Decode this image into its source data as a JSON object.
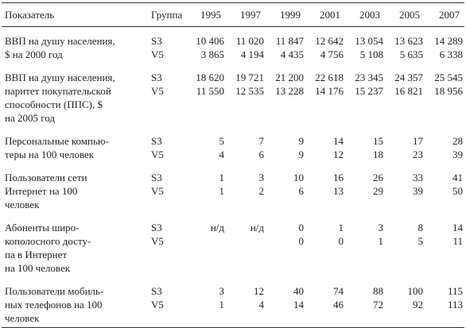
{
  "table": {
    "header": [
      "Показатель",
      "Группа",
      "1995",
      "1997",
      "1999",
      "2001",
      "2003",
      "2005",
      "2007"
    ],
    "rows": [
      {
        "label": [
          "ВВП на душу населения,",
          "$ на 2000 год"
        ],
        "groups": [
          {
            "name": "S3",
            "values": [
              "10 406",
              "11 020",
              "11 847",
              "12 642",
              "13 054",
              "13 623",
              "14 289"
            ]
          },
          {
            "name": "V5",
            "values": [
              "3 865",
              "4 194",
              "4 435",
              "4 756",
              "5 108",
              "5 635",
              "6 338"
            ]
          }
        ]
      },
      {
        "label": [
          "ВВП на душу населения,",
          "паритет покупательской",
          "способности (ППС), $",
          "на 2005 год"
        ],
        "groups": [
          {
            "name": "S3",
            "values": [
              "18 620",
              "19 721",
              "21 200",
              "22 618",
              "23 345",
              "24 357",
              "25 545"
            ]
          },
          {
            "name": "V5",
            "values": [
              "11 550",
              "12 535",
              "13 228",
              "14 176",
              "15 237",
              "16 821",
              "18 956"
            ]
          }
        ]
      },
      {
        "label": [
          "Персональные компью-",
          "теры на 100 человек"
        ],
        "groups": [
          {
            "name": "S3",
            "values": [
              "5",
              "7",
              "9",
              "14",
              "15",
              "17",
              "28"
            ]
          },
          {
            "name": "V5",
            "values": [
              "4",
              "6",
              "9",
              "12",
              "18",
              "23",
              "39"
            ]
          }
        ]
      },
      {
        "label": [
          "Пользователи сети",
          "Интернет на 100",
          "человек"
        ],
        "groups": [
          {
            "name": "S3",
            "values": [
              "1",
              "3",
              "10",
              "16",
              "26",
              "33",
              "41"
            ]
          },
          {
            "name": "V5",
            "values": [
              "1",
              "2",
              "6",
              "13",
              "29",
              "39",
              "50"
            ]
          }
        ]
      },
      {
        "label": [
          "Абоненты широ-",
          "кополосного досту-",
          "па в Интернет",
          "на 100 человек"
        ],
        "groups": [
          {
            "name": "S3",
            "values": [
              "н/д",
              "н/д",
              "0",
              "1",
              "3",
              "8",
              "14"
            ]
          },
          {
            "name": "V5",
            "values": [
              null,
              null,
              "0",
              "0",
              "1",
              "5",
              "11"
            ]
          }
        ]
      },
      {
        "label": [
          "Пользователи мобиль-",
          "ных телефонов на 100",
          "человек"
        ],
        "groups": [
          {
            "name": "S3",
            "values": [
              "3",
              "12",
              "40",
              "74",
              "88",
              "100",
              "115"
            ]
          },
          {
            "name": "V5",
            "values": [
              "1",
              "4",
              "14",
              "46",
              "72",
              "92",
              "113"
            ]
          }
        ]
      }
    ]
  }
}
